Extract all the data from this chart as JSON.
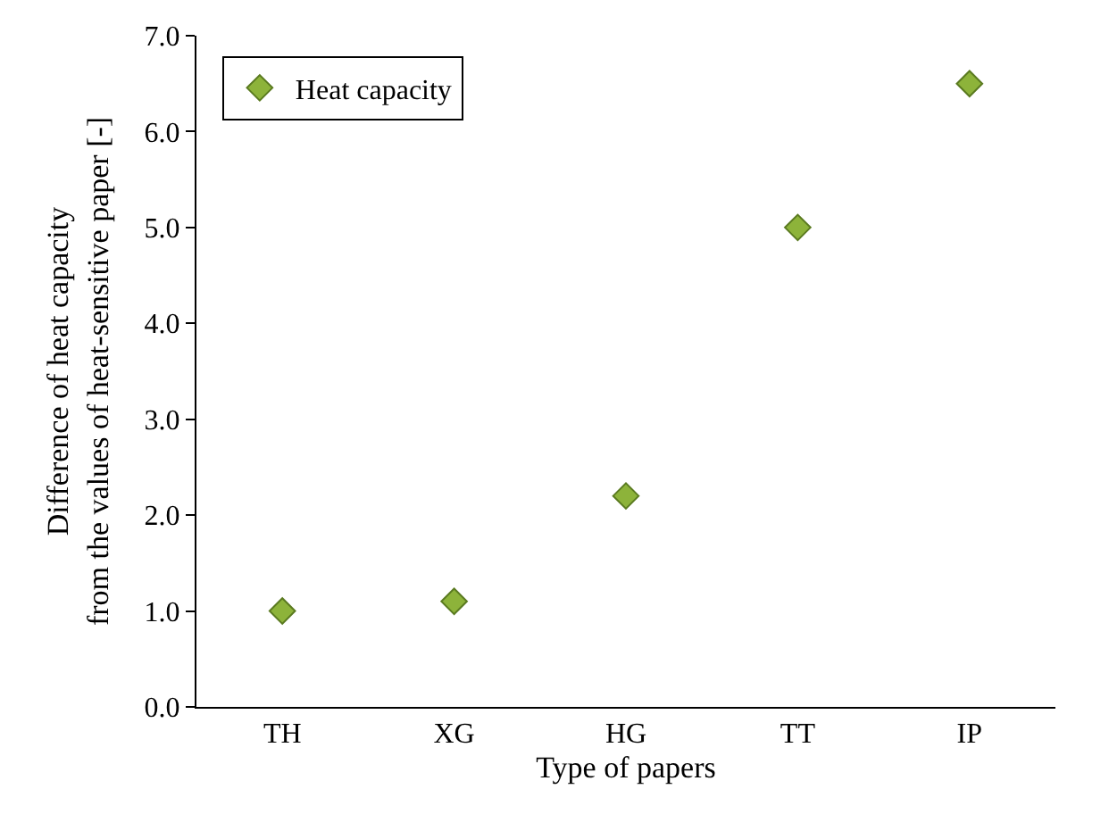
{
  "chart_data": {
    "type": "scatter",
    "xlabel": "Type of papers",
    "ylabel": "Difference of heat capacity\nfrom the values of heat-sensitive paper [-]",
    "categories": [
      "TH",
      "XG",
      "HG",
      "TT",
      "IP"
    ],
    "series": [
      {
        "name": "Heat capacity",
        "color": "#8db33a",
        "values": [
          1.0,
          1.1,
          2.2,
          5.0,
          6.5
        ]
      }
    ],
    "ylim": [
      0,
      7
    ],
    "yticks": [
      {
        "value": 0,
        "label": "0.0"
      },
      {
        "value": 1,
        "label": "1.0"
      },
      {
        "value": 2,
        "label": "2.0"
      },
      {
        "value": 3,
        "label": "3.0"
      },
      {
        "value": 4,
        "label": "4.0"
      },
      {
        "value": 5,
        "label": "5.0"
      },
      {
        "value": 6,
        "label": "6.0"
      },
      {
        "value": 7,
        "label": "7.0"
      }
    ],
    "legend": "top left",
    "marker": "diamond"
  }
}
